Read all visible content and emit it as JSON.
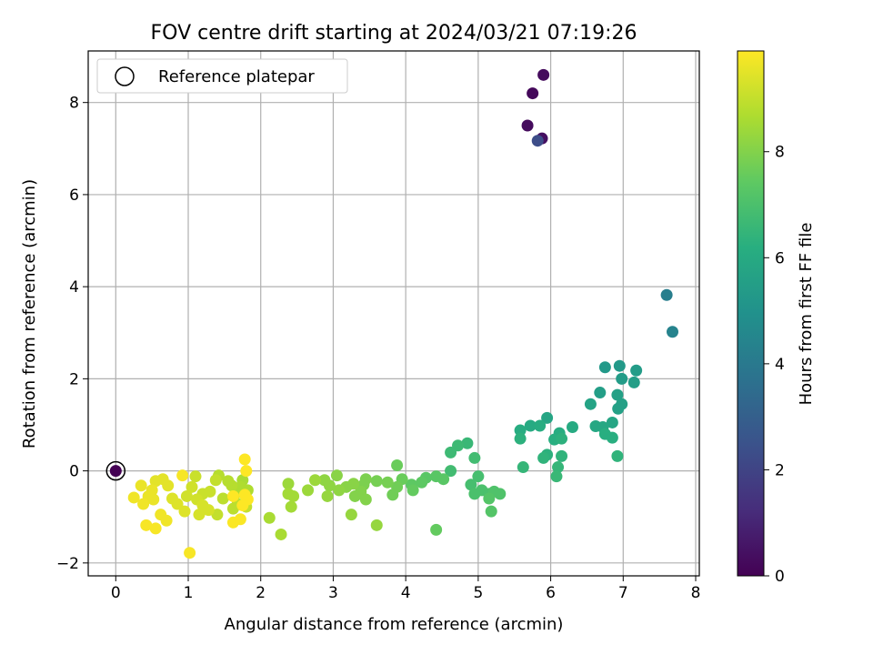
{
  "chart_data": {
    "type": "scatter",
    "title": "FOV centre drift starting at 2024/03/21 07:19:26",
    "xlabel": "Angular distance from reference (arcmin)",
    "ylabel": "Rotation from reference (arcmin)",
    "xlim": [
      -0.38,
      8.05
    ],
    "ylim": [
      -2.28,
      9.12
    ],
    "xticks": [
      "0",
      "1",
      "2",
      "3",
      "4",
      "5",
      "6",
      "7",
      "8"
    ],
    "yticks": [
      "−2",
      "0",
      "2",
      "4",
      "6",
      "8"
    ],
    "grid": true,
    "legend": {
      "position": "top-left",
      "entries": [
        "Reference platepar"
      ]
    },
    "colorbar": {
      "label": "Hours from first FF file",
      "min": 0,
      "max": 9.9,
      "ticks": [
        "0",
        "2",
        "4",
        "6",
        "8"
      ],
      "colormap": "viridis"
    },
    "reference_point": {
      "x": 0,
      "y": 0,
      "hours": 0
    },
    "points": [
      {
        "x": 5.75,
        "y": 8.2,
        "h": 0.2
      },
      {
        "x": 5.9,
        "y": 8.6,
        "h": 0.3
      },
      {
        "x": 5.68,
        "y": 7.5,
        "h": 0.3
      },
      {
        "x": 5.88,
        "y": 7.22,
        "h": 0.4
      },
      {
        "x": 5.82,
        "y": 7.17,
        "h": 2.3
      },
      {
        "x": 7.6,
        "y": 3.82,
        "h": 4.2
      },
      {
        "x": 7.68,
        "y": 3.02,
        "h": 4.4
      },
      {
        "x": 6.75,
        "y": 2.25,
        "h": 5.3
      },
      {
        "x": 6.95,
        "y": 2.28,
        "h": 5.3
      },
      {
        "x": 7.18,
        "y": 2.18,
        "h": 5.4
      },
      {
        "x": 6.98,
        "y": 2.0,
        "h": 5.4
      },
      {
        "x": 7.15,
        "y": 1.92,
        "h": 5.5
      },
      {
        "x": 6.68,
        "y": 1.7,
        "h": 5.5
      },
      {
        "x": 6.92,
        "y": 1.65,
        "h": 5.6
      },
      {
        "x": 6.98,
        "y": 1.45,
        "h": 5.6
      },
      {
        "x": 6.93,
        "y": 1.35,
        "h": 5.6
      },
      {
        "x": 6.55,
        "y": 1.45,
        "h": 5.7
      },
      {
        "x": 5.95,
        "y": 1.15,
        "h": 5.8
      },
      {
        "x": 6.85,
        "y": 1.05,
        "h": 5.8
      },
      {
        "x": 6.62,
        "y": 0.97,
        "h": 5.9
      },
      {
        "x": 6.72,
        "y": 0.95,
        "h": 5.9
      },
      {
        "x": 6.3,
        "y": 0.95,
        "h": 6.0
      },
      {
        "x": 5.72,
        "y": 0.98,
        "h": 6.0
      },
      {
        "x": 5.85,
        "y": 0.98,
        "h": 6.1
      },
      {
        "x": 5.58,
        "y": 0.88,
        "h": 6.1
      },
      {
        "x": 6.12,
        "y": 0.82,
        "h": 6.1
      },
      {
        "x": 6.75,
        "y": 0.8,
        "h": 6.2
      },
      {
        "x": 6.85,
        "y": 0.72,
        "h": 6.2
      },
      {
        "x": 6.05,
        "y": 0.68,
        "h": 6.2
      },
      {
        "x": 5.58,
        "y": 0.7,
        "h": 6.3
      },
      {
        "x": 6.15,
        "y": 0.7,
        "h": 6.3
      },
      {
        "x": 5.95,
        "y": 0.35,
        "h": 6.3
      },
      {
        "x": 6.15,
        "y": 0.32,
        "h": 6.4
      },
      {
        "x": 6.92,
        "y": 0.32,
        "h": 6.4
      },
      {
        "x": 5.9,
        "y": 0.28,
        "h": 6.4
      },
      {
        "x": 6.1,
        "y": 0.08,
        "h": 6.5
      },
      {
        "x": 5.62,
        "y": 0.08,
        "h": 6.5
      },
      {
        "x": 6.08,
        "y": -0.12,
        "h": 6.6
      },
      {
        "x": 4.85,
        "y": 0.6,
        "h": 6.6
      },
      {
        "x": 4.72,
        "y": 0.55,
        "h": 6.7
      },
      {
        "x": 4.62,
        "y": 0.4,
        "h": 6.7
      },
      {
        "x": 4.95,
        "y": 0.28,
        "h": 6.8
      },
      {
        "x": 4.62,
        "y": 0.0,
        "h": 6.8
      },
      {
        "x": 5.0,
        "y": -0.12,
        "h": 6.9
      },
      {
        "x": 4.9,
        "y": -0.3,
        "h": 6.9
      },
      {
        "x": 5.05,
        "y": -0.42,
        "h": 7.0
      },
      {
        "x": 5.15,
        "y": -0.5,
        "h": 7.0
      },
      {
        "x": 4.95,
        "y": -0.5,
        "h": 7.0
      },
      {
        "x": 5.22,
        "y": -0.45,
        "h": 7.1
      },
      {
        "x": 5.3,
        "y": -0.5,
        "h": 7.1
      },
      {
        "x": 5.15,
        "y": -0.6,
        "h": 7.2
      },
      {
        "x": 5.18,
        "y": -0.88,
        "h": 7.2
      },
      {
        "x": 4.52,
        "y": -0.18,
        "h": 7.3
      },
      {
        "x": 4.42,
        "y": -0.12,
        "h": 7.3
      },
      {
        "x": 4.28,
        "y": -0.15,
        "h": 7.3
      },
      {
        "x": 4.22,
        "y": -0.25,
        "h": 7.4
      },
      {
        "x": 4.08,
        "y": -0.3,
        "h": 7.4
      },
      {
        "x": 4.1,
        "y": -0.42,
        "h": 7.5
      },
      {
        "x": 4.42,
        "y": -1.28,
        "h": 7.5
      },
      {
        "x": 3.88,
        "y": 0.12,
        "h": 7.6
      },
      {
        "x": 3.95,
        "y": -0.18,
        "h": 7.6
      },
      {
        "x": 3.88,
        "y": -0.35,
        "h": 7.7
      },
      {
        "x": 3.82,
        "y": -0.52,
        "h": 7.7
      },
      {
        "x": 3.75,
        "y": -0.25,
        "h": 7.8
      },
      {
        "x": 3.6,
        "y": -0.22,
        "h": 7.8
      },
      {
        "x": 3.45,
        "y": -0.18,
        "h": 7.9
      },
      {
        "x": 3.42,
        "y": -0.3,
        "h": 7.9
      },
      {
        "x": 3.38,
        "y": -0.45,
        "h": 8.0
      },
      {
        "x": 3.45,
        "y": -0.62,
        "h": 8.0
      },
      {
        "x": 3.3,
        "y": -0.55,
        "h": 8.0
      },
      {
        "x": 3.28,
        "y": -0.28,
        "h": 8.1
      },
      {
        "x": 3.18,
        "y": -0.35,
        "h": 8.1
      },
      {
        "x": 3.05,
        "y": -0.1,
        "h": 8.1
      },
      {
        "x": 3.08,
        "y": -0.42,
        "h": 8.2
      },
      {
        "x": 2.95,
        "y": -0.32,
        "h": 8.2
      },
      {
        "x": 2.88,
        "y": -0.2,
        "h": 8.2
      },
      {
        "x": 2.92,
        "y": -0.55,
        "h": 8.3
      },
      {
        "x": 3.25,
        "y": -0.95,
        "h": 8.3
      },
      {
        "x": 3.6,
        "y": -1.18,
        "h": 8.3
      },
      {
        "x": 2.75,
        "y": -0.2,
        "h": 8.4
      },
      {
        "x": 2.65,
        "y": -0.42,
        "h": 8.4
      },
      {
        "x": 2.38,
        "y": -0.28,
        "h": 8.4
      },
      {
        "x": 2.38,
        "y": -0.5,
        "h": 8.5
      },
      {
        "x": 2.45,
        "y": -0.55,
        "h": 8.5
      },
      {
        "x": 2.42,
        "y": -0.78,
        "h": 8.5
      },
      {
        "x": 2.12,
        "y": -1.02,
        "h": 8.6
      },
      {
        "x": 2.28,
        "y": -1.38,
        "h": 8.6
      },
      {
        "x": 1.75,
        "y": -0.2,
        "h": 8.6
      },
      {
        "x": 1.72,
        "y": -0.35,
        "h": 8.7
      },
      {
        "x": 1.82,
        "y": -0.42,
        "h": 8.7
      },
      {
        "x": 1.65,
        "y": -0.5,
        "h": 8.7
      },
      {
        "x": 1.6,
        "y": -0.32,
        "h": 8.8
      },
      {
        "x": 1.55,
        "y": -0.22,
        "h": 8.8
      },
      {
        "x": 1.42,
        "y": -0.1,
        "h": 8.8
      },
      {
        "x": 1.48,
        "y": -0.6,
        "h": 8.9
      },
      {
        "x": 1.68,
        "y": -0.72,
        "h": 8.9
      },
      {
        "x": 1.62,
        "y": -0.82,
        "h": 8.9
      },
      {
        "x": 1.8,
        "y": -0.78,
        "h": 9.0
      },
      {
        "x": 1.4,
        "y": -0.95,
        "h": 9.0
      },
      {
        "x": 1.38,
        "y": -0.2,
        "h": 9.0
      },
      {
        "x": 1.3,
        "y": -0.45,
        "h": 9.1
      },
      {
        "x": 1.2,
        "y": -0.5,
        "h": 9.1
      },
      {
        "x": 1.1,
        "y": -0.12,
        "h": 9.1
      },
      {
        "x": 1.05,
        "y": -0.35,
        "h": 9.2
      },
      {
        "x": 0.98,
        "y": -0.55,
        "h": 9.2
      },
      {
        "x": 1.12,
        "y": -0.62,
        "h": 9.2
      },
      {
        "x": 1.2,
        "y": -0.75,
        "h": 9.3
      },
      {
        "x": 1.28,
        "y": -0.85,
        "h": 9.3
      },
      {
        "x": 1.15,
        "y": -0.95,
        "h": 9.3
      },
      {
        "x": 0.95,
        "y": -0.88,
        "h": 9.4
      },
      {
        "x": 0.85,
        "y": -0.72,
        "h": 9.4
      },
      {
        "x": 0.78,
        "y": -0.6,
        "h": 9.4
      },
      {
        "x": 0.72,
        "y": -0.32,
        "h": 9.5
      },
      {
        "x": 0.65,
        "y": -0.18,
        "h": 9.5
      },
      {
        "x": 0.55,
        "y": -0.22,
        "h": 9.5
      },
      {
        "x": 0.5,
        "y": -0.42,
        "h": 9.6
      },
      {
        "x": 0.45,
        "y": -0.55,
        "h": 9.6
      },
      {
        "x": 0.52,
        "y": -0.62,
        "h": 9.6
      },
      {
        "x": 0.35,
        "y": -0.32,
        "h": 9.6
      },
      {
        "x": 0.38,
        "y": -0.72,
        "h": 9.7
      },
      {
        "x": 0.25,
        "y": -0.58,
        "h": 9.7
      },
      {
        "x": 0.62,
        "y": -0.95,
        "h": 9.7
      },
      {
        "x": 0.7,
        "y": -1.08,
        "h": 9.7
      },
      {
        "x": 0.42,
        "y": -1.18,
        "h": 9.8
      },
      {
        "x": 0.55,
        "y": -1.25,
        "h": 9.8
      },
      {
        "x": 0.92,
        "y": -0.1,
        "h": 9.8
      },
      {
        "x": 1.02,
        "y": -1.78,
        "h": 9.8
      },
      {
        "x": 1.62,
        "y": -1.12,
        "h": 9.85
      },
      {
        "x": 1.72,
        "y": -1.05,
        "h": 9.85
      },
      {
        "x": 1.78,
        "y": 0.25,
        "h": 9.9
      },
      {
        "x": 1.8,
        "y": 0.0,
        "h": 9.9
      },
      {
        "x": 1.62,
        "y": -0.55,
        "h": 9.9
      },
      {
        "x": 1.78,
        "y": -0.52,
        "h": 9.9
      },
      {
        "x": 1.82,
        "y": -0.62,
        "h": 9.9
      },
      {
        "x": 1.75,
        "y": -0.75,
        "h": 9.9
      }
    ]
  }
}
